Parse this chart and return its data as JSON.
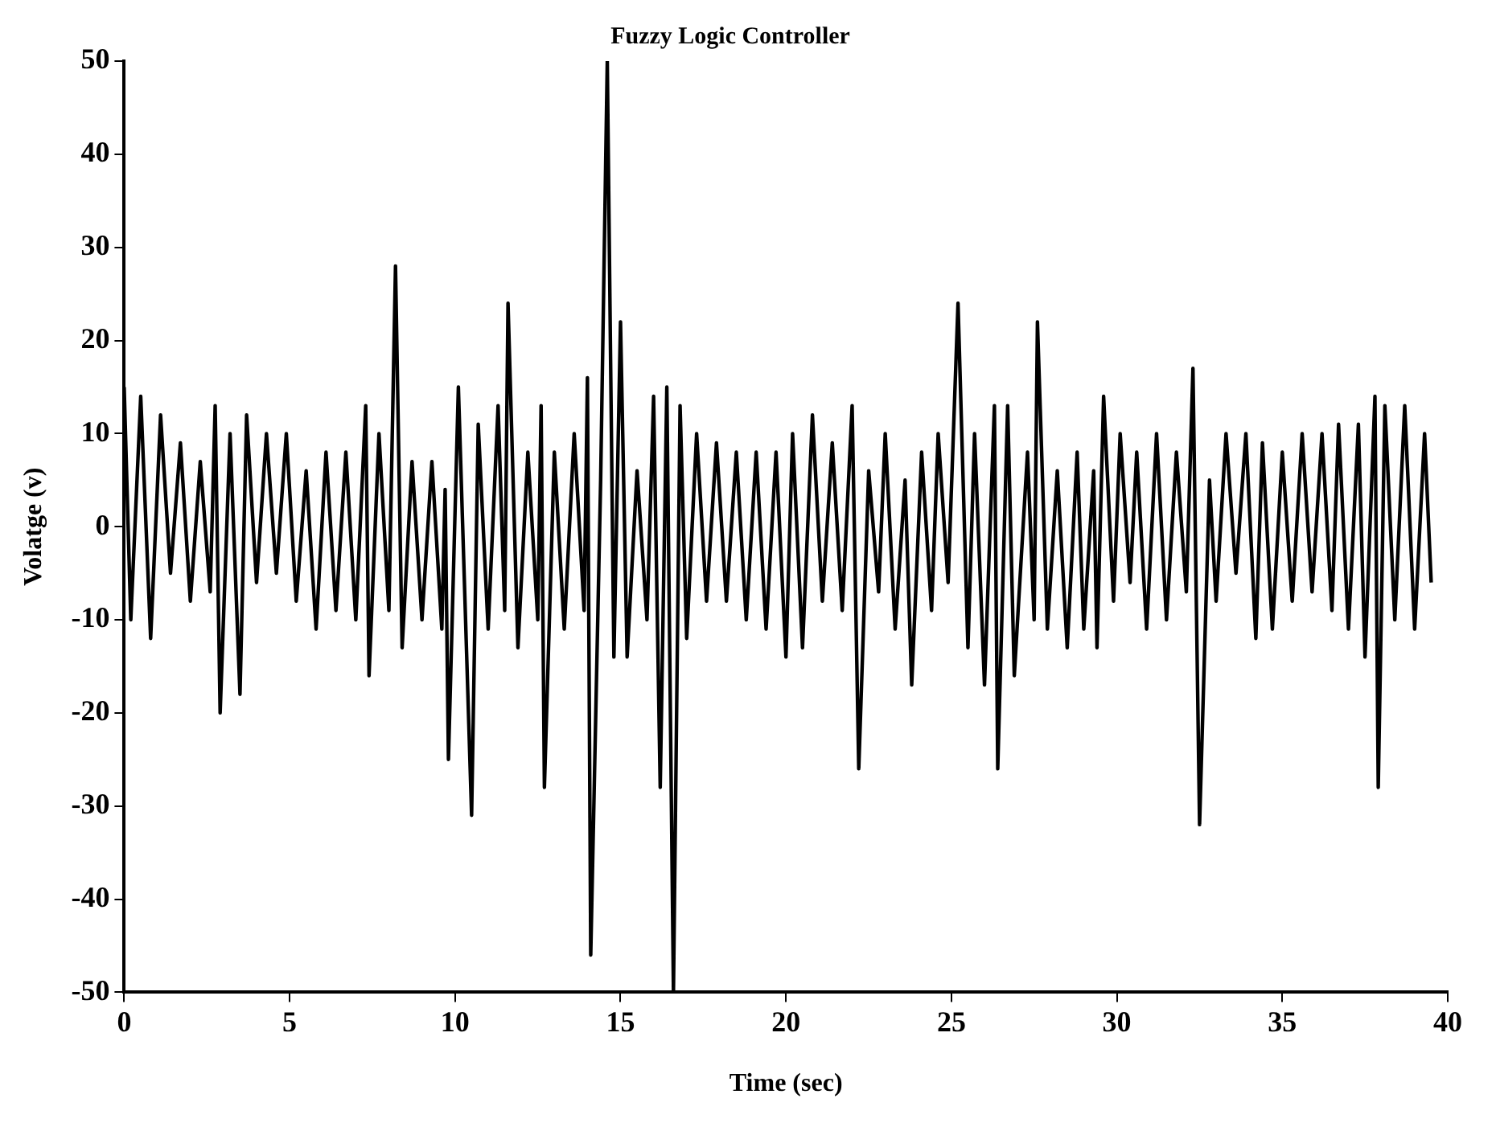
{
  "chart_data": {
    "type": "line",
    "title": "Fuzzy Logic Controller",
    "xlabel": "Time (sec)",
    "ylabel": "Volatge (v)",
    "xlim": [
      0,
      40
    ],
    "xticks": [
      0,
      5,
      10,
      15,
      20,
      25,
      30,
      35,
      40
    ],
    "ylim": [
      -50,
      50
    ],
    "yticks": [
      -50,
      -40,
      -30,
      -20,
      -10,
      0,
      10,
      20,
      30,
      40,
      50
    ],
    "grid": false,
    "legend": false,
    "marker": "none",
    "line_style": "solid",
    "series": [
      {
        "color": "#000000",
        "x": [
          0,
          0.2,
          0.5,
          0.8,
          1.1,
          1.4,
          1.7,
          2.0,
          2.3,
          2.6,
          2.75,
          2.9,
          3.2,
          3.5,
          3.7,
          4.0,
          4.3,
          4.6,
          4.9,
          5.2,
          5.5,
          5.8,
          6.1,
          6.4,
          6.7,
          7.0,
          7.3,
          7.4,
          7.7,
          8.0,
          8.2,
          8.4,
          8.7,
          9.0,
          9.3,
          9.6,
          9.7,
          9.8,
          10.1,
          10.5,
          10.7,
          11.0,
          11.3,
          11.5,
          11.6,
          11.9,
          12.2,
          12.5,
          12.6,
          12.7,
          13.0,
          13.3,
          13.6,
          13.9,
          14.0,
          14.1,
          14.4,
          14.6,
          14.8,
          15.0,
          15.2,
          15.5,
          15.8,
          16.0,
          16.2,
          16.4,
          16.6,
          16.8,
          17.0,
          17.3,
          17.6,
          17.9,
          18.2,
          18.5,
          18.8,
          19.1,
          19.4,
          19.7,
          20.0,
          20.2,
          20.5,
          20.8,
          21.1,
          21.4,
          21.7,
          22.0,
          22.2,
          22.5,
          22.8,
          23.0,
          23.3,
          23.6,
          23.8,
          24.1,
          24.4,
          24.6,
          24.9,
          25.2,
          25.5,
          25.7,
          26.0,
          26.3,
          26.4,
          26.7,
          26.9,
          27.3,
          27.5,
          27.6,
          27.9,
          28.2,
          28.5,
          28.8,
          29.0,
          29.3,
          29.4,
          29.6,
          29.9,
          30.1,
          30.4,
          30.6,
          30.9,
          31.2,
          31.5,
          31.8,
          32.1,
          32.3,
          32.5,
          32.8,
          33.0,
          33.3,
          33.6,
          33.9,
          34.2,
          34.4,
          34.7,
          35.0,
          35.3,
          35.6,
          35.9,
          36.2,
          36.5,
          36.7,
          37.0,
          37.3,
          37.5,
          37.8,
          37.9,
          38.1,
          38.4,
          38.7,
          39.0,
          39.3,
          39.5
        ],
        "values": [
          15,
          -10,
          14,
          -12,
          12,
          -5,
          9,
          -8,
          7,
          -7,
          13,
          -20,
          10,
          -18,
          12,
          -6,
          10,
          -5,
          10,
          -8,
          6,
          -11,
          8,
          -9,
          8,
          -10,
          13,
          -16,
          10,
          -9,
          28,
          -13,
          7,
          -10,
          7,
          -11,
          4,
          -25,
          15,
          -31,
          11,
          -11,
          13,
          -9,
          24,
          -13,
          8,
          -10,
          13,
          -28,
          8,
          -11,
          10,
          -9,
          16,
          -46,
          5,
          50,
          -14,
          22,
          -14,
          6,
          -10,
          14,
          -28,
          15,
          -50,
          13,
          -12,
          10,
          -8,
          9,
          -8,
          8,
          -10,
          8,
          -11,
          8,
          -14,
          10,
          -13,
          12,
          -8,
          9,
          -9,
          13,
          -26,
          6,
          -7,
          10,
          -11,
          5,
          -17,
          8,
          -9,
          10,
          -6,
          24,
          -13,
          10,
          -17,
          13,
          -26,
          13,
          -16,
          8,
          -10,
          22,
          -11,
          6,
          -13,
          8,
          -11,
          6,
          -13,
          14,
          -8,
          10,
          -6,
          8,
          -11,
          10,
          -10,
          8,
          -7,
          17,
          -32,
          5,
          -8,
          10,
          -5,
          10,
          -12,
          9,
          -11,
          8,
          -8,
          10,
          -7,
          10,
          -9,
          11,
          -11,
          11,
          -14,
          14,
          -28,
          13,
          -10,
          13,
          -11,
          10,
          -6
        ]
      }
    ]
  }
}
